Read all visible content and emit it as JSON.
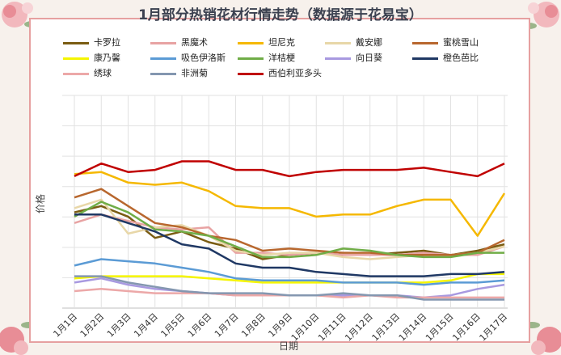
{
  "chart_data": {
    "type": "line",
    "title": "1月部分热销花材行情走势（数据源于花易宝）",
    "xlabel": "日期",
    "ylabel": "价格",
    "categories": [
      "1月1日",
      "1月2日",
      "1月3日",
      "1月4日",
      "1月5日",
      "1月6日",
      "1月7日",
      "1月8日",
      "1月9日",
      "1月10日",
      "1月11日",
      "1月12日",
      "1月13日",
      "1月14日",
      "1月15日",
      "1月16日",
      "1月17日"
    ],
    "ylim": [
      0,
      100
    ],
    "grid": true,
    "legend": "top",
    "series": [
      {
        "name": "卡罗拉",
        "color": "#7a5c12",
        "values": [
          45,
          48,
          43,
          33,
          36,
          31,
          28,
          23,
          25,
          26,
          25,
          25,
          26,
          27,
          25,
          27,
          30
        ]
      },
      {
        "name": "黑魔术",
        "color": "#e8a3a3",
        "values": [
          40,
          44,
          41,
          38,
          37,
          38,
          26,
          26,
          25,
          26,
          25,
          25,
          25,
          26,
          25,
          25,
          29
        ]
      },
      {
        "name": "坦尼克",
        "color": "#f5b800",
        "values": [
          63,
          64,
          59,
          58,
          59,
          55,
          48,
          47,
          47,
          43,
          44,
          44,
          48,
          51,
          51,
          34,
          54
        ]
      },
      {
        "name": "戴安娜",
        "color": "#e8d7a8",
        "values": [
          47,
          51,
          35,
          38,
          39,
          34,
          27,
          25,
          26,
          26,
          24,
          23,
          24,
          25,
          25,
          26,
          29
        ]
      },
      {
        "name": "蜜桃雪山",
        "color": "#b8672e",
        "values": [
          52,
          56,
          48,
          40,
          38,
          34,
          32,
          27,
          28,
          27,
          26,
          26,
          25,
          25,
          25,
          26,
          32
        ]
      },
      {
        "name": "康乃馨",
        "color": "#f5f500",
        "values": [
          14,
          15,
          15,
          15,
          15,
          14,
          13,
          12,
          12,
          12,
          12,
          12,
          12,
          12,
          13,
          16,
          16
        ]
      },
      {
        "name": "吸色伊洛斯",
        "color": "#5b9bd5",
        "values": [
          20,
          23,
          22,
          21,
          19,
          17,
          14,
          13,
          13,
          13,
          12,
          12,
          12,
          11,
          12,
          12,
          13
        ]
      },
      {
        "name": "洋桔梗",
        "color": "#70ad47",
        "values": [
          43,
          50,
          45,
          37,
          36,
          34,
          29,
          24,
          24,
          25,
          28,
          27,
          25,
          24,
          24,
          26,
          26
        ]
      },
      {
        "name": "向日葵",
        "color": "#a899e0",
        "values": [
          12,
          14,
          11,
          9,
          8,
          7,
          6,
          6,
          6,
          6,
          6,
          6,
          6,
          5,
          6,
          9,
          11
        ]
      },
      {
        "name": "橙色芭比",
        "color": "#1f3864",
        "values": [
          44,
          44,
          40,
          36,
          30,
          28,
          21,
          19,
          19,
          17,
          16,
          15,
          15,
          15,
          16,
          16,
          17
        ]
      },
      {
        "name": "绣球",
        "color": "#eca8a8",
        "values": [
          8,
          9,
          8,
          7,
          7,
          7,
          6,
          6,
          6,
          6,
          5,
          6,
          5,
          5,
          5,
          5,
          5
        ]
      },
      {
        "name": "非洲菊",
        "color": "#8497b0",
        "values": [
          15,
          15,
          12,
          10,
          8,
          7,
          7,
          7,
          6,
          6,
          7,
          6,
          6,
          4,
          4,
          4,
          4
        ]
      },
      {
        "name": "西伯利亚多头",
        "color": "#c00000",
        "values": [
          62,
          68,
          64,
          65,
          69,
          69,
          65,
          65,
          62,
          64,
          65,
          65,
          65,
          66,
          64,
          62,
          68
        ]
      }
    ]
  }
}
